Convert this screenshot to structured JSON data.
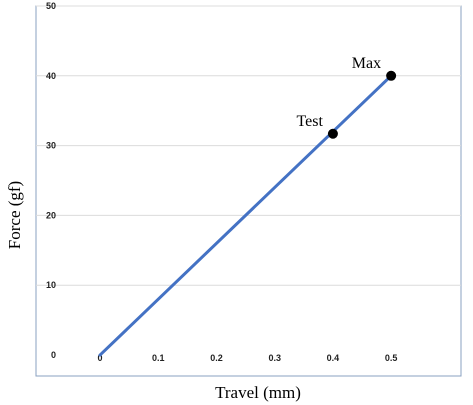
{
  "chart_data": {
    "type": "line",
    "xlabel": "Travel (mm)",
    "ylabel": "Force (gf)",
    "xlim": [
      -0.11,
      0.62
    ],
    "ylim": [
      -3,
      50
    ],
    "x_ticks": [
      "0",
      "0.1",
      "0.2",
      "0.3",
      "0.4",
      "0.5"
    ],
    "y_ticks": [
      "0",
      "10",
      "20",
      "30",
      "40",
      "50"
    ],
    "grid": "horizontal",
    "series": [
      {
        "x": [
          0,
          0.5
        ],
        "y": [
          0,
          40
        ],
        "color": "#4472C4"
      }
    ],
    "points": [
      {
        "label": "Test",
        "x": 0.4,
        "y": 31.7
      },
      {
        "label": "Max",
        "x": 0.5,
        "y": 40
      }
    ]
  }
}
